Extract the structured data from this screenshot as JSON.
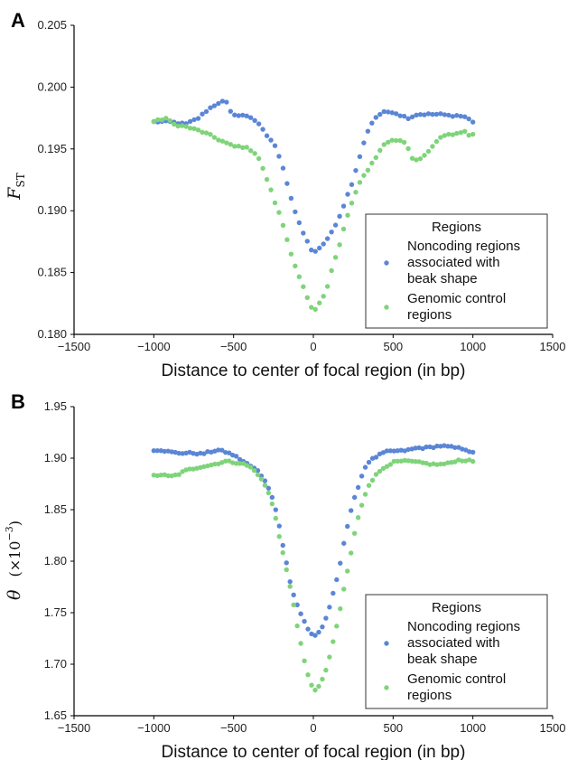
{
  "colors": {
    "noncoding": "#5b86d6",
    "control": "#7fd47a",
    "axis": "#000000",
    "legend_border": "#333333"
  },
  "chart_data": [
    {
      "panel": "A",
      "type": "scatter",
      "xlabel": "Distance to center of focal region (in bp)",
      "ylabel": "F_ST",
      "ylabel_main": "F",
      "ylabel_sub": "ST",
      "xlim": [
        -1500,
        1500
      ],
      "ylim": [
        0.18,
        0.205
      ],
      "xticks": [
        -1500,
        -1000,
        -500,
        0,
        500,
        1000,
        1500
      ],
      "xtick_labels": [
        "−1500",
        "−1000",
        "−500",
        "0",
        "500",
        "1000",
        "1500"
      ],
      "yticks": [
        0.18,
        0.185,
        0.19,
        0.195,
        0.2,
        0.205
      ],
      "ytick_labels": [
        "0.180",
        "0.185",
        "0.190",
        "0.195",
        "0.200",
        "0.205"
      ],
      "grid": false,
      "legend": {
        "title": "Regions",
        "placement": "lower-right",
        "entries": [
          {
            "series": "noncoding",
            "lines": [
              "Noncoding regions",
              "associated with",
              "beak shape"
            ]
          },
          {
            "series": "control",
            "lines": [
              "Genomic control",
              "regions"
            ]
          }
        ]
      },
      "series": [
        {
          "key": "noncoding",
          "name": "Noncoding regions associated with beak shape",
          "anchors": [
            [
              -1000,
              0.1972
            ],
            [
              -900,
              0.1972
            ],
            [
              -800,
              0.197
            ],
            [
              -720,
              0.1975
            ],
            [
              -660,
              0.1982
            ],
            [
              -600,
              0.1987
            ],
            [
              -550,
              0.1989
            ],
            [
              -520,
              0.198
            ],
            [
              -480,
              0.1977
            ],
            [
              -420,
              0.1977
            ],
            [
              -380,
              0.1975
            ],
            [
              -330,
              0.1968
            ],
            [
              -300,
              0.1962
            ],
            [
              -250,
              0.1955
            ],
            [
              -200,
              0.194
            ],
            [
              -150,
              0.1915
            ],
            [
              -100,
              0.1893
            ],
            [
              -50,
              0.1878
            ],
            [
              -10,
              0.1868
            ],
            [
              20,
              0.1867
            ],
            [
              60,
              0.1872
            ],
            [
              100,
              0.188
            ],
            [
              150,
              0.189
            ],
            [
              200,
              0.1908
            ],
            [
              250,
              0.1925
            ],
            [
              300,
              0.1948
            ],
            [
              350,
              0.1968
            ],
            [
              400,
              0.1977
            ],
            [
              450,
              0.198
            ],
            [
              500,
              0.198
            ],
            [
              550,
              0.1977
            ],
            [
              600,
              0.1975
            ],
            [
              650,
              0.1978
            ],
            [
              700,
              0.1978
            ],
            [
              750,
              0.1978
            ],
            [
              800,
              0.1978
            ],
            [
              850,
              0.1977
            ],
            [
              900,
              0.1977
            ],
            [
              950,
              0.1976
            ],
            [
              1000,
              0.1972
            ]
          ],
          "n_points": 80
        },
        {
          "key": "control",
          "name": "Genomic control regions",
          "anchors": [
            [
              -1000,
              0.1972
            ],
            [
              -920,
              0.1975
            ],
            [
              -880,
              0.197
            ],
            [
              -800,
              0.1968
            ],
            [
              -720,
              0.1965
            ],
            [
              -660,
              0.1962
            ],
            [
              -600,
              0.1958
            ],
            [
              -550,
              0.1955
            ],
            [
              -500,
              0.1952
            ],
            [
              -450,
              0.1952
            ],
            [
              -400,
              0.195
            ],
            [
              -350,
              0.1945
            ],
            [
              -320,
              0.1935
            ],
            [
              -280,
              0.1922
            ],
            [
              -250,
              0.191
            ],
            [
              -200,
              0.1893
            ],
            [
              -150,
              0.187
            ],
            [
              -100,
              0.185
            ],
            [
              -60,
              0.1837
            ],
            [
              -20,
              0.1823
            ],
            [
              0,
              0.1818
            ],
            [
              30,
              0.1823
            ],
            [
              60,
              0.183
            ],
            [
              90,
              0.184
            ],
            [
              120,
              0.1855
            ],
            [
              160,
              0.187
            ],
            [
              200,
              0.189
            ],
            [
              250,
              0.191
            ],
            [
              300,
              0.1925
            ],
            [
              350,
              0.1935
            ],
            [
              400,
              0.1945
            ],
            [
              450,
              0.1955
            ],
            [
              500,
              0.1957
            ],
            [
              550,
              0.1957
            ],
            [
              580,
              0.1955
            ],
            [
              620,
              0.1943
            ],
            [
              660,
              0.194
            ],
            [
              700,
              0.1945
            ],
            [
              750,
              0.1952
            ],
            [
              800,
              0.196
            ],
            [
              850,
              0.1962
            ],
            [
              900,
              0.1962
            ],
            [
              950,
              0.1965
            ],
            [
              980,
              0.196
            ],
            [
              1000,
              0.1962
            ]
          ],
          "n_points": 80
        }
      ]
    },
    {
      "panel": "B",
      "type": "scatter",
      "xlabel": "Distance to center of focal region (in bp)",
      "ylabel": "θ (×10^−3)",
      "ylabel_main": "θ",
      "ylabel_paren": "(×10",
      "ylabel_exp": "−3",
      "ylabel_close": ")",
      "xlim": [
        -1500,
        1500
      ],
      "ylim": [
        1.65,
        1.95
      ],
      "xticks": [
        -1500,
        -1000,
        -500,
        0,
        500,
        1000,
        1500
      ],
      "xtick_labels": [
        "−1500",
        "−1000",
        "−500",
        "0",
        "500",
        "1000",
        "1500"
      ],
      "yticks": [
        1.65,
        1.7,
        1.75,
        1.8,
        1.85,
        1.9,
        1.95
      ],
      "ytick_labels": [
        "1.65",
        "1.70",
        "1.75",
        "1.80",
        "1.85",
        "1.90",
        "1.95"
      ],
      "grid": false,
      "legend": {
        "title": "Regions",
        "placement": "lower-right",
        "entries": [
          {
            "series": "noncoding",
            "lines": [
              "Noncoding regions",
              "associated with",
              "beak shape"
            ]
          },
          {
            "series": "control",
            "lines": [
              "Genomic control",
              "regions"
            ]
          }
        ]
      },
      "series": [
        {
          "key": "noncoding",
          "name": "Noncoding regions associated with beak shape",
          "anchors": [
            [
              -1000,
              1.908
            ],
            [
              -950,
              1.908
            ],
            [
              -900,
              1.906
            ],
            [
              -850,
              1.905
            ],
            [
              -800,
              1.905
            ],
            [
              -750,
              1.905
            ],
            [
              -700,
              1.904
            ],
            [
              -650,
              1.906
            ],
            [
              -600,
              1.908
            ],
            [
              -550,
              1.906
            ],
            [
              -500,
              1.903
            ],
            [
              -450,
              1.898
            ],
            [
              -400,
              1.893
            ],
            [
              -350,
              1.888
            ],
            [
              -300,
              1.878
            ],
            [
              -280,
              1.87
            ],
            [
              -250,
              1.86
            ],
            [
              -220,
              1.84
            ],
            [
              -200,
              1.822
            ],
            [
              -170,
              1.8
            ],
            [
              -150,
              1.782
            ],
            [
              -120,
              1.765
            ],
            [
              -90,
              1.753
            ],
            [
              -60,
              1.743
            ],
            [
              -30,
              1.733
            ],
            [
              -10,
              1.729
            ],
            [
              20,
              1.728
            ],
            [
              50,
              1.733
            ],
            [
              80,
              1.745
            ],
            [
              110,
              1.76
            ],
            [
              140,
              1.778
            ],
            [
              170,
              1.8
            ],
            [
              200,
              1.825
            ],
            [
              230,
              1.845
            ],
            [
              260,
              1.862
            ],
            [
              290,
              1.877
            ],
            [
              320,
              1.89
            ],
            [
              350,
              1.897
            ],
            [
              400,
              1.902
            ],
            [
              450,
              1.906
            ],
            [
              500,
              1.907
            ],
            [
              550,
              1.907
            ],
            [
              600,
              1.908
            ],
            [
              650,
              1.91
            ],
            [
              700,
              1.91
            ],
            [
              750,
              1.911
            ],
            [
              800,
              1.912
            ],
            [
              850,
              1.911
            ],
            [
              900,
              1.91
            ],
            [
              950,
              1.909
            ],
            [
              1000,
              1.905
            ]
          ],
          "n_points": 90
        },
        {
          "key": "control",
          "name": "Genomic control regions",
          "anchors": [
            [
              -1000,
              1.883
            ],
            [
              -950,
              1.884
            ],
            [
              -900,
              1.882
            ],
            [
              -850,
              1.884
            ],
            [
              -800,
              1.888
            ],
            [
              -750,
              1.89
            ],
            [
              -700,
              1.892
            ],
            [
              -650,
              1.893
            ],
            [
              -600,
              1.895
            ],
            [
              -550,
              1.897
            ],
            [
              -500,
              1.896
            ],
            [
              -450,
              1.895
            ],
            [
              -400,
              1.892
            ],
            [
              -350,
              1.885
            ],
            [
              -300,
              1.873
            ],
            [
              -270,
              1.862
            ],
            [
              -240,
              1.845
            ],
            [
              -210,
              1.822
            ],
            [
              -180,
              1.8
            ],
            [
              -150,
              1.778
            ],
            [
              -120,
              1.755
            ],
            [
              -90,
              1.728
            ],
            [
              -60,
              1.705
            ],
            [
              -30,
              1.687
            ],
            [
              0,
              1.676
            ],
            [
              20,
              1.675
            ],
            [
              50,
              1.682
            ],
            [
              80,
              1.695
            ],
            [
              110,
              1.712
            ],
            [
              140,
              1.732
            ],
            [
              170,
              1.755
            ],
            [
              200,
              1.78
            ],
            [
              230,
              1.803
            ],
            [
              260,
              1.828
            ],
            [
              290,
              1.848
            ],
            [
              320,
              1.863
            ],
            [
              350,
              1.875
            ],
            [
              400,
              1.885
            ],
            [
              450,
              1.892
            ],
            [
              500,
              1.896
            ],
            [
              550,
              1.897
            ],
            [
              600,
              1.897
            ],
            [
              650,
              1.896
            ],
            [
              700,
              1.895
            ],
            [
              750,
              1.894
            ],
            [
              800,
              1.894
            ],
            [
              850,
              1.895
            ],
            [
              900,
              1.898
            ],
            [
              950,
              1.898
            ],
            [
              1000,
              1.897
            ]
          ],
          "n_points": 90
        }
      ]
    }
  ]
}
